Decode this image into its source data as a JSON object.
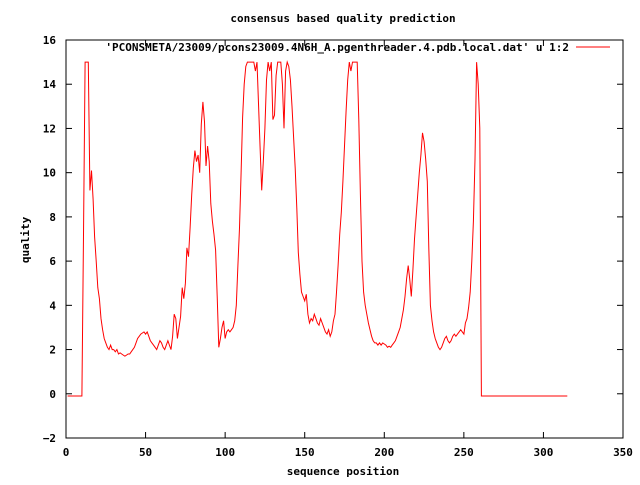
{
  "chart_data": {
    "type": "line",
    "title": "consensus based quality prediction",
    "xlabel": "sequence position",
    "ylabel": "quality",
    "xlim": [
      0,
      350
    ],
    "ylim": [
      -2,
      16
    ],
    "x_ticks": [
      0,
      50,
      100,
      150,
      200,
      250,
      300,
      350
    ],
    "y_ticks": [
      -2,
      0,
      2,
      4,
      6,
      8,
      10,
      12,
      14,
      16
    ],
    "x_tick_labels": [
      "0",
      "50",
      "100",
      "150",
      "200",
      "250",
      "300",
      "350"
    ],
    "y_tick_labels": [
      "−2",
      "0",
      "2",
      "4",
      "6",
      "8",
      "10",
      "12",
      "14",
      "16"
    ],
    "grid": false,
    "legend_position": "top-right",
    "series": [
      {
        "name": "'PCONSMETA/23009/pcons23009.4N6H_A.pgenthreader.4.pdb.local.dat' u 1:2",
        "color": "#ff0000",
        "points": [
          [
            1,
            -0.1
          ],
          [
            10,
            -0.1
          ],
          [
            11,
            7.2
          ],
          [
            12,
            15
          ],
          [
            14,
            15
          ],
          [
            15,
            9.2
          ],
          [
            16,
            10.1
          ],
          [
            17,
            8.8
          ],
          [
            18,
            7.1
          ],
          [
            19,
            6.0
          ],
          [
            20,
            4.8
          ],
          [
            21,
            4.3
          ],
          [
            22,
            3.4
          ],
          [
            23,
            2.9
          ],
          [
            24,
            2.5
          ],
          [
            25,
            2.3
          ],
          [
            26,
            2.1
          ],
          [
            27,
            2.0
          ],
          [
            28,
            2.2
          ],
          [
            29,
            2.0
          ],
          [
            30,
            2.0
          ],
          [
            31,
            1.9
          ],
          [
            32,
            2.0
          ],
          [
            33,
            1.8
          ],
          [
            34,
            1.85
          ],
          [
            35,
            1.8
          ],
          [
            36,
            1.75
          ],
          [
            37,
            1.7
          ],
          [
            38,
            1.75
          ],
          [
            39,
            1.8
          ],
          [
            40,
            1.8
          ],
          [
            41,
            1.9
          ],
          [
            42,
            2.0
          ],
          [
            43,
            2.1
          ],
          [
            44,
            2.3
          ],
          [
            45,
            2.5
          ],
          [
            46,
            2.6
          ],
          [
            47,
            2.7
          ],
          [
            48,
            2.75
          ],
          [
            49,
            2.8
          ],
          [
            50,
            2.7
          ],
          [
            51,
            2.8
          ],
          [
            52,
            2.6
          ],
          [
            53,
            2.4
          ],
          [
            54,
            2.3
          ],
          [
            55,
            2.2
          ],
          [
            56,
            2.1
          ],
          [
            57,
            2.0
          ],
          [
            58,
            2.2
          ],
          [
            59,
            2.4
          ],
          [
            60,
            2.3
          ],
          [
            61,
            2.1
          ],
          [
            62,
            2.0
          ],
          [
            63,
            2.2
          ],
          [
            64,
            2.4
          ],
          [
            65,
            2.2
          ],
          [
            66,
            2.0
          ],
          [
            67,
            2.6
          ],
          [
            68,
            3.6
          ],
          [
            69,
            3.4
          ],
          [
            70,
            2.5
          ],
          [
            71,
            3.0
          ],
          [
            72,
            3.5
          ],
          [
            73,
            4.8
          ],
          [
            74,
            4.3
          ],
          [
            75,
            5.0
          ],
          [
            76,
            6.6
          ],
          [
            77,
            6.2
          ],
          [
            78,
            7.5
          ],
          [
            79,
            9.0
          ],
          [
            80,
            10.2
          ],
          [
            81,
            11.0
          ],
          [
            82,
            10.5
          ],
          [
            83,
            10.8
          ],
          [
            84,
            10.0
          ],
          [
            85,
            12.2
          ],
          [
            86,
            13.2
          ],
          [
            87,
            12.3
          ],
          [
            88,
            10.3
          ],
          [
            89,
            11.2
          ],
          [
            90,
            10.5
          ],
          [
            91,
            8.6
          ],
          [
            92,
            7.8
          ],
          [
            93,
            7.2
          ],
          [
            94,
            6.5
          ],
          [
            95,
            4.4
          ],
          [
            96,
            2.1
          ],
          [
            97,
            2.5
          ],
          [
            98,
            3.0
          ],
          [
            99,
            3.3
          ],
          [
            100,
            2.5
          ],
          [
            101,
            2.8
          ],
          [
            102,
            2.9
          ],
          [
            103,
            2.8
          ],
          [
            104,
            2.9
          ],
          [
            105,
            3.0
          ],
          [
            106,
            3.3
          ],
          [
            107,
            4.0
          ],
          [
            108,
            5.8
          ],
          [
            109,
            7.5
          ],
          [
            110,
            10.0
          ],
          [
            111,
            12.5
          ],
          [
            112,
            14.0
          ],
          [
            113,
            14.8
          ],
          [
            114,
            15.0
          ],
          [
            118,
            15.0
          ],
          [
            119,
            14.6
          ],
          [
            120,
            15.0
          ],
          [
            121,
            13.0
          ],
          [
            122,
            11.0
          ],
          [
            123,
            9.2
          ],
          [
            124,
            10.5
          ],
          [
            125,
            12.0
          ],
          [
            126,
            14.2
          ],
          [
            127,
            15.0
          ],
          [
            128,
            14.6
          ],
          [
            129,
            15.0
          ],
          [
            130,
            12.4
          ],
          [
            131,
            12.6
          ],
          [
            132,
            14.4
          ],
          [
            133,
            15.0
          ],
          [
            135,
            15.0
          ],
          [
            136,
            14.0
          ],
          [
            137,
            12.0
          ],
          [
            138,
            14.6
          ],
          [
            139,
            15.0
          ],
          [
            140,
            14.8
          ],
          [
            141,
            14.2
          ],
          [
            142,
            13.0
          ],
          [
            143,
            11.6
          ],
          [
            144,
            10.2
          ],
          [
            145,
            8.4
          ],
          [
            146,
            6.4
          ],
          [
            147,
            5.4
          ],
          [
            148,
            4.6
          ],
          [
            149,
            4.4
          ],
          [
            150,
            4.2
          ],
          [
            151,
            4.5
          ],
          [
            152,
            3.6
          ],
          [
            153,
            3.2
          ],
          [
            154,
            3.4
          ],
          [
            155,
            3.3
          ],
          [
            156,
            3.6
          ],
          [
            157,
            3.4
          ],
          [
            158,
            3.2
          ],
          [
            159,
            3.1
          ],
          [
            160,
            3.4
          ],
          [
            161,
            3.2
          ],
          [
            162,
            3.0
          ],
          [
            163,
            2.8
          ],
          [
            164,
            2.7
          ],
          [
            165,
            2.9
          ],
          [
            166,
            2.6
          ],
          [
            167,
            2.8
          ],
          [
            168,
            3.3
          ],
          [
            169,
            3.6
          ],
          [
            170,
            4.6
          ],
          [
            171,
            5.8
          ],
          [
            172,
            7.2
          ],
          [
            173,
            8.2
          ],
          [
            174,
            9.6
          ],
          [
            175,
            11.2
          ],
          [
            176,
            12.8
          ],
          [
            177,
            14.2
          ],
          [
            178,
            15.0
          ],
          [
            179,
            14.6
          ],
          [
            180,
            15.0
          ],
          [
            183,
            15.0
          ],
          [
            184,
            12.4
          ],
          [
            185,
            9.0
          ],
          [
            186,
            6.0
          ],
          [
            187,
            4.6
          ],
          [
            188,
            4.0
          ],
          [
            189,
            3.6
          ],
          [
            190,
            3.2
          ],
          [
            191,
            2.9
          ],
          [
            192,
            2.6
          ],
          [
            193,
            2.4
          ],
          [
            194,
            2.3
          ],
          [
            195,
            2.3
          ],
          [
            196,
            2.2
          ],
          [
            197,
            2.3
          ],
          [
            198,
            2.2
          ],
          [
            199,
            2.3
          ],
          [
            200,
            2.25
          ],
          [
            201,
            2.2
          ],
          [
            202,
            2.1
          ],
          [
            203,
            2.15
          ],
          [
            204,
            2.1
          ],
          [
            205,
            2.2
          ],
          [
            206,
            2.3
          ],
          [
            207,
            2.4
          ],
          [
            208,
            2.6
          ],
          [
            209,
            2.8
          ],
          [
            210,
            3.0
          ],
          [
            211,
            3.4
          ],
          [
            212,
            3.8
          ],
          [
            213,
            4.4
          ],
          [
            214,
            5.2
          ],
          [
            215,
            5.8
          ],
          [
            216,
            5.2
          ],
          [
            217,
            4.4
          ],
          [
            218,
            5.6
          ],
          [
            219,
            7.0
          ],
          [
            220,
            8.0
          ],
          [
            221,
            9.0
          ],
          [
            222,
            10.0
          ],
          [
            223,
            10.8
          ],
          [
            224,
            11.8
          ],
          [
            225,
            11.4
          ],
          [
            226,
            10.6
          ],
          [
            227,
            9.6
          ],
          [
            228,
            6.6
          ],
          [
            229,
            4.0
          ],
          [
            230,
            3.3
          ],
          [
            231,
            2.8
          ],
          [
            232,
            2.5
          ],
          [
            233,
            2.3
          ],
          [
            234,
            2.1
          ],
          [
            235,
            2.0
          ],
          [
            236,
            2.1
          ],
          [
            237,
            2.3
          ],
          [
            238,
            2.5
          ],
          [
            239,
            2.6
          ],
          [
            240,
            2.4
          ],
          [
            241,
            2.3
          ],
          [
            242,
            2.4
          ],
          [
            243,
            2.6
          ],
          [
            244,
            2.7
          ],
          [
            245,
            2.6
          ],
          [
            246,
            2.7
          ],
          [
            247,
            2.8
          ],
          [
            248,
            2.9
          ],
          [
            249,
            2.8
          ],
          [
            250,
            2.7
          ],
          [
            251,
            3.2
          ],
          [
            252,
            3.4
          ],
          [
            253,
            3.9
          ],
          [
            254,
            4.6
          ],
          [
            255,
            6.0
          ],
          [
            256,
            7.8
          ],
          [
            257,
            10.6
          ],
          [
            258,
            15.0
          ],
          [
            259,
            14.0
          ],
          [
            260,
            12.0
          ],
          [
            261,
            -0.1
          ],
          [
            315,
            -0.1
          ]
        ]
      }
    ]
  }
}
